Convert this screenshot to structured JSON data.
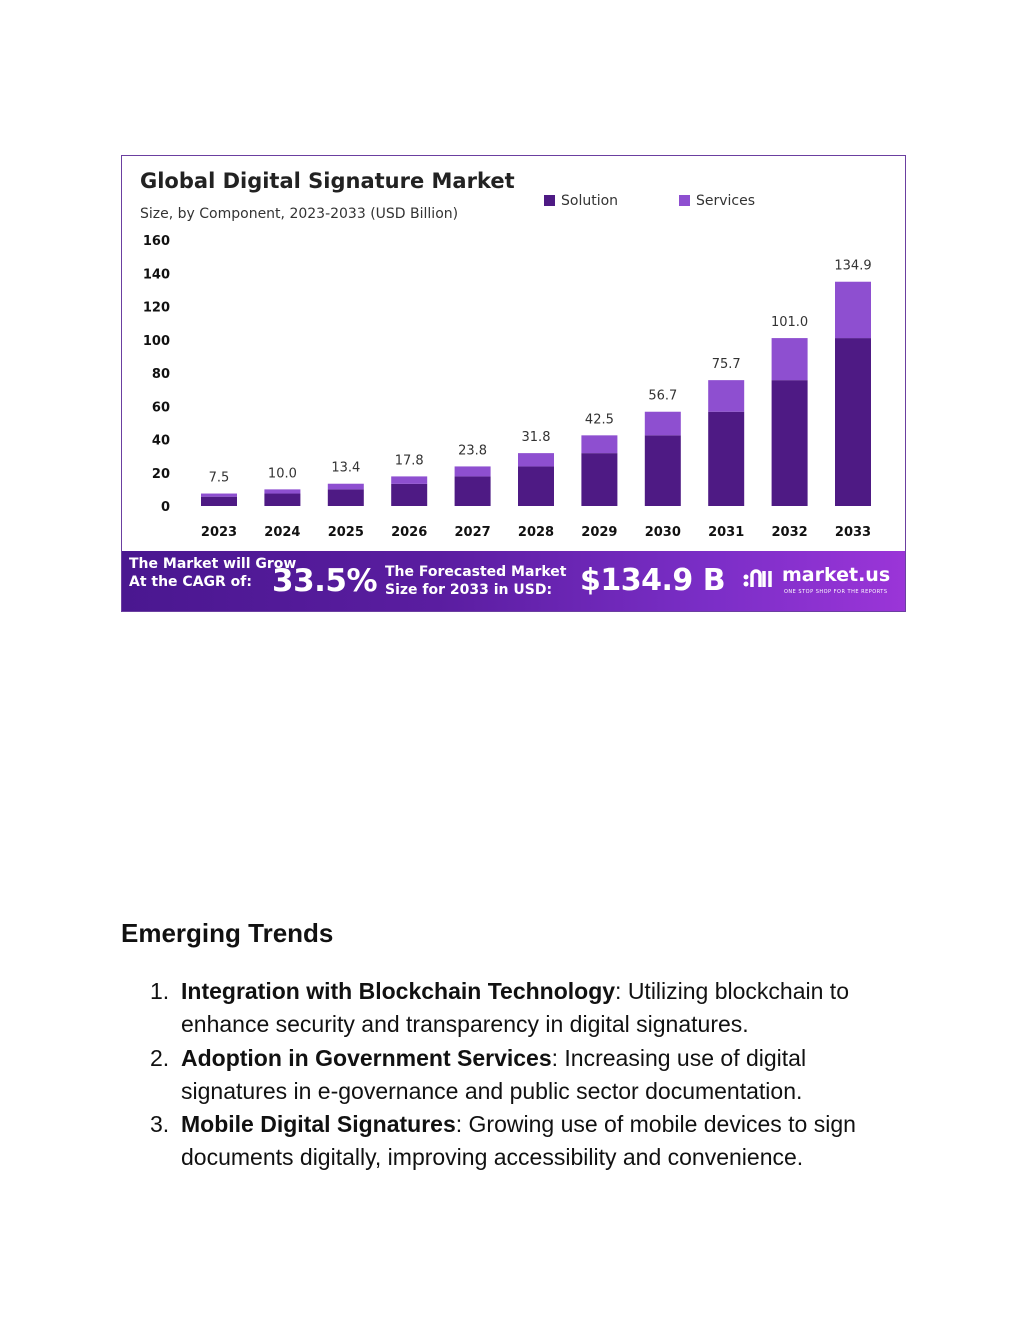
{
  "chart_data": {
    "type": "bar",
    "stacked": true,
    "title": "Global Digital Signature Market",
    "subtitle": "Size, by Component, 2023-2033 (USD Billion)",
    "categories": [
      "2023",
      "2024",
      "2025",
      "2026",
      "2027",
      "2028",
      "2029",
      "2030",
      "2031",
      "2032",
      "2033"
    ],
    "series": [
      {
        "name": "Solution",
        "color": "#4e1a84",
        "values": [
          5.6,
          7.5,
          10.0,
          13.3,
          17.8,
          23.8,
          31.8,
          42.5,
          56.7,
          75.7,
          101.0
        ]
      },
      {
        "name": "Services",
        "color": "#8e4fd0",
        "values": [
          1.9,
          2.5,
          3.4,
          4.5,
          6.0,
          8.0,
          10.7,
          14.2,
          19.0,
          25.3,
          33.9
        ]
      }
    ],
    "totals": [
      "7.5",
      "10.0",
      "13.4",
      "17.8",
      "23.8",
      "31.8",
      "42.5",
      "56.7",
      "75.7",
      "101.0",
      "134.9"
    ],
    "ylim": [
      0,
      160
    ],
    "yticks": [
      "0",
      "20",
      "40",
      "60",
      "80",
      "100",
      "120",
      "140",
      "160"
    ],
    "legend_position": "top-right",
    "grid": false
  },
  "banner": {
    "grow_line1": "The Market will Grow",
    "grow_line2": "At the CAGR of:",
    "cagr": "33.5%",
    "forecast_line1": "The Forecasted Market",
    "forecast_line2": "Size for 2033 in USD:",
    "market_size": "$134.9 B",
    "logo_icon": "market-us-logo-icon",
    "logo_text": "market.us",
    "tagline": "ONE STOP SHOP FOR THE REPORTS"
  },
  "trends": {
    "heading": "Emerging Trends",
    "items": [
      {
        "number": "1.",
        "title": "Integration with Blockchain Technology",
        "text": ": Utilizing blockchain to enhance security and transparency in digital signatures."
      },
      {
        "number": "2.",
        "title": "Adoption in Government Services",
        "text": ": Increasing use of digital signatures in e-governance and public sector documentation."
      },
      {
        "number": "3.",
        "title": "Mobile Digital Signatures",
        "text": ": Growing use of mobile devices to sign documents digitally, improving accessibility and convenience."
      }
    ]
  }
}
